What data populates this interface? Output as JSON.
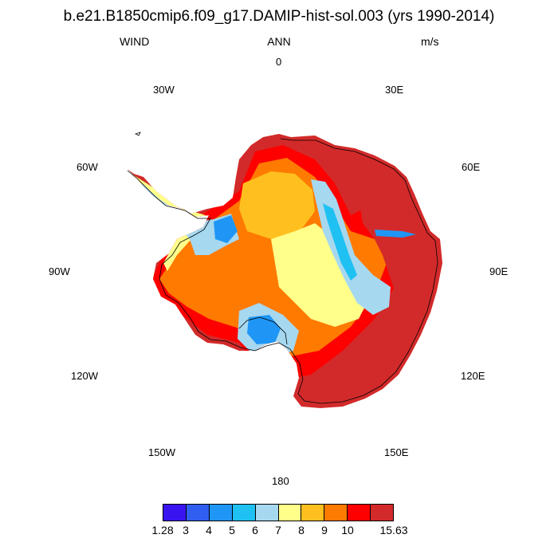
{
  "title": "b.e21.B1850cmip6.f09_g17.DAMIP-hist-sol.003 (yrs 1990-2014)",
  "left_label": "WIND",
  "center_label": "ANN",
  "right_label": "m/s",
  "longitude_labels": {
    "n0": "0",
    "e30": "30E",
    "e60": "60E",
    "e90": "90E",
    "e120": "120E",
    "e150": "150E",
    "s180": "180",
    "w150": "150W",
    "w120": "120W",
    "w90": "90W",
    "w60": "60W",
    "w30": "30W"
  },
  "colorbar": {
    "colors": [
      "#3a14f0",
      "#2f5ef0",
      "#1f96f5",
      "#1fc0f2",
      "#a6d8f0",
      "#ffff8a",
      "#ffc01f",
      "#ff7a00",
      "#ff0000",
      "#d22a2a"
    ],
    "labels": [
      "1.28",
      "3",
      "4",
      "5",
      "6",
      "7",
      "8",
      "9",
      "10",
      "15.63"
    ]
  }
}
